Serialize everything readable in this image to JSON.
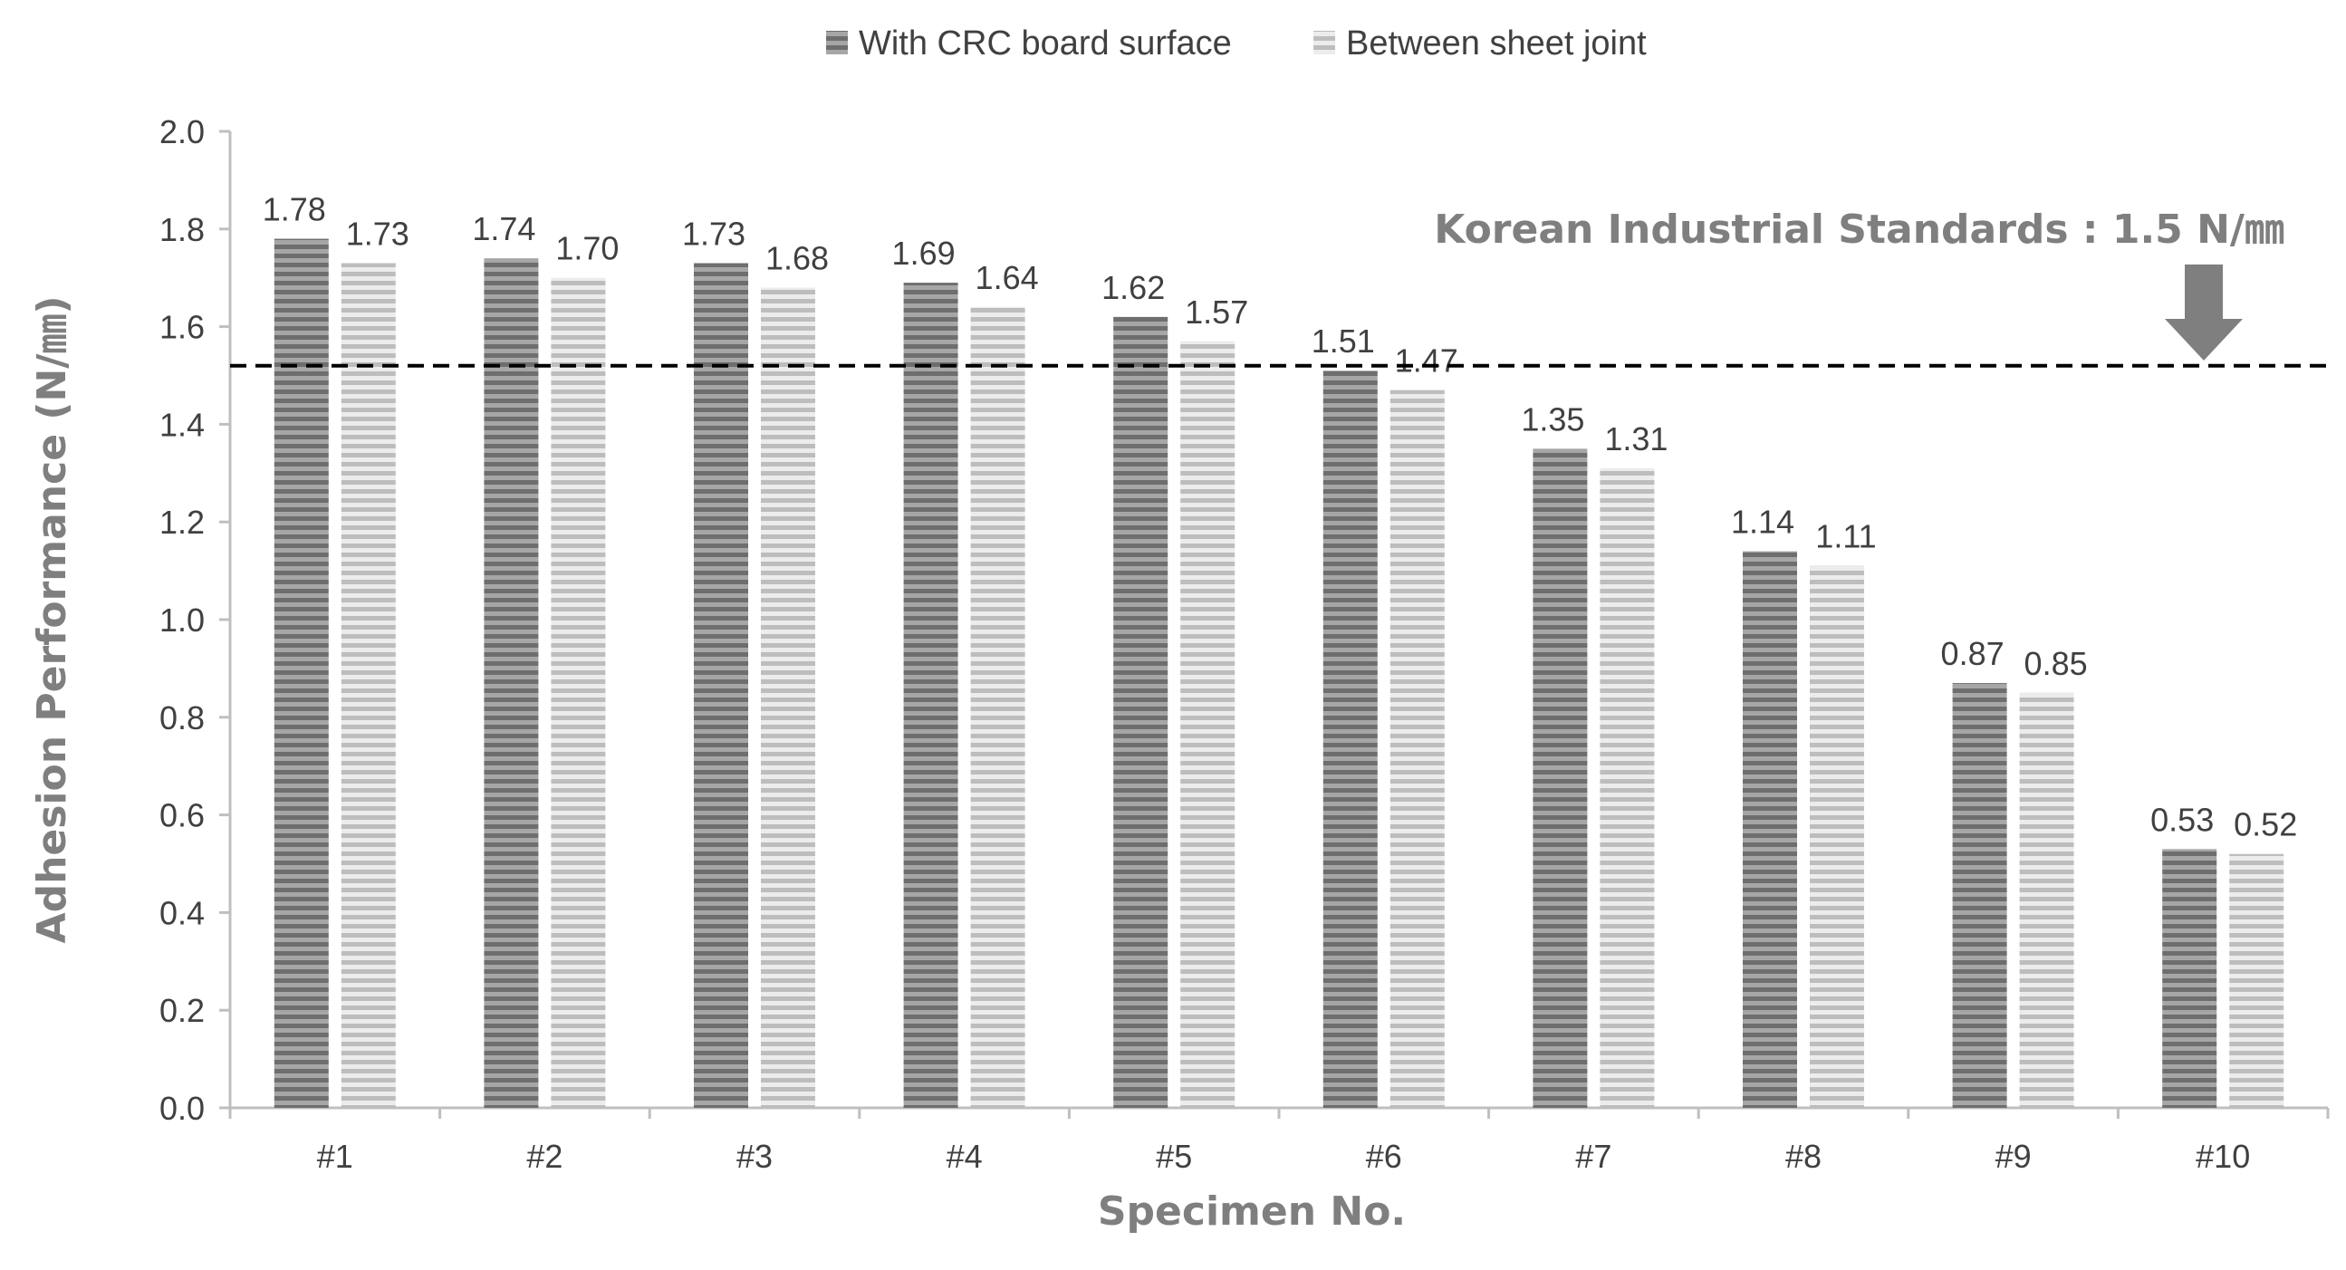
{
  "chart_data": {
    "type": "bar",
    "categories": [
      "#1",
      "#2",
      "#3",
      "#4",
      "#5",
      "#6",
      "#7",
      "#8",
      "#9",
      "#10"
    ],
    "series": [
      {
        "name": "With CRC board surface",
        "values": [
          1.78,
          1.74,
          1.73,
          1.69,
          1.62,
          1.51,
          1.35,
          1.14,
          0.87,
          0.53
        ],
        "labels": [
          "1.78",
          "1.74",
          "1.73",
          "1.69",
          "1.62",
          "1.51",
          "1.35",
          "1.14",
          "0.87",
          "0.53"
        ]
      },
      {
        "name": "Between sheet joint",
        "values": [
          1.73,
          1.7,
          1.68,
          1.64,
          1.57,
          1.47,
          1.31,
          1.11,
          0.85,
          0.52
        ],
        "labels": [
          "1.73",
          "1.70",
          "1.68",
          "1.64",
          "1.57",
          "1.47",
          "1.31",
          "1.11",
          "0.85",
          "0.52"
        ]
      }
    ],
    "xlabel": "Specimen No.",
    "ylabel": "Adhesion Performance (N/㎜)",
    "ylim": [
      0,
      2.0
    ],
    "yticks": [
      "0.0",
      "0.2",
      "0.4",
      "0.6",
      "0.8",
      "1.0",
      "1.2",
      "1.4",
      "1.6",
      "1.8",
      "2.0"
    ],
    "reference_line": {
      "value": 1.52,
      "style": "dashed"
    },
    "annotation": "Korean Industrial Standards : 1.5 N/㎜",
    "legend": "top-center",
    "grid": false,
    "colors": {
      "series1": "#8c8c8c",
      "series2": "#c8c8c8",
      "axis": "#bfbfbf",
      "text": "#404040",
      "title_text": "#7f7f7f"
    }
  }
}
